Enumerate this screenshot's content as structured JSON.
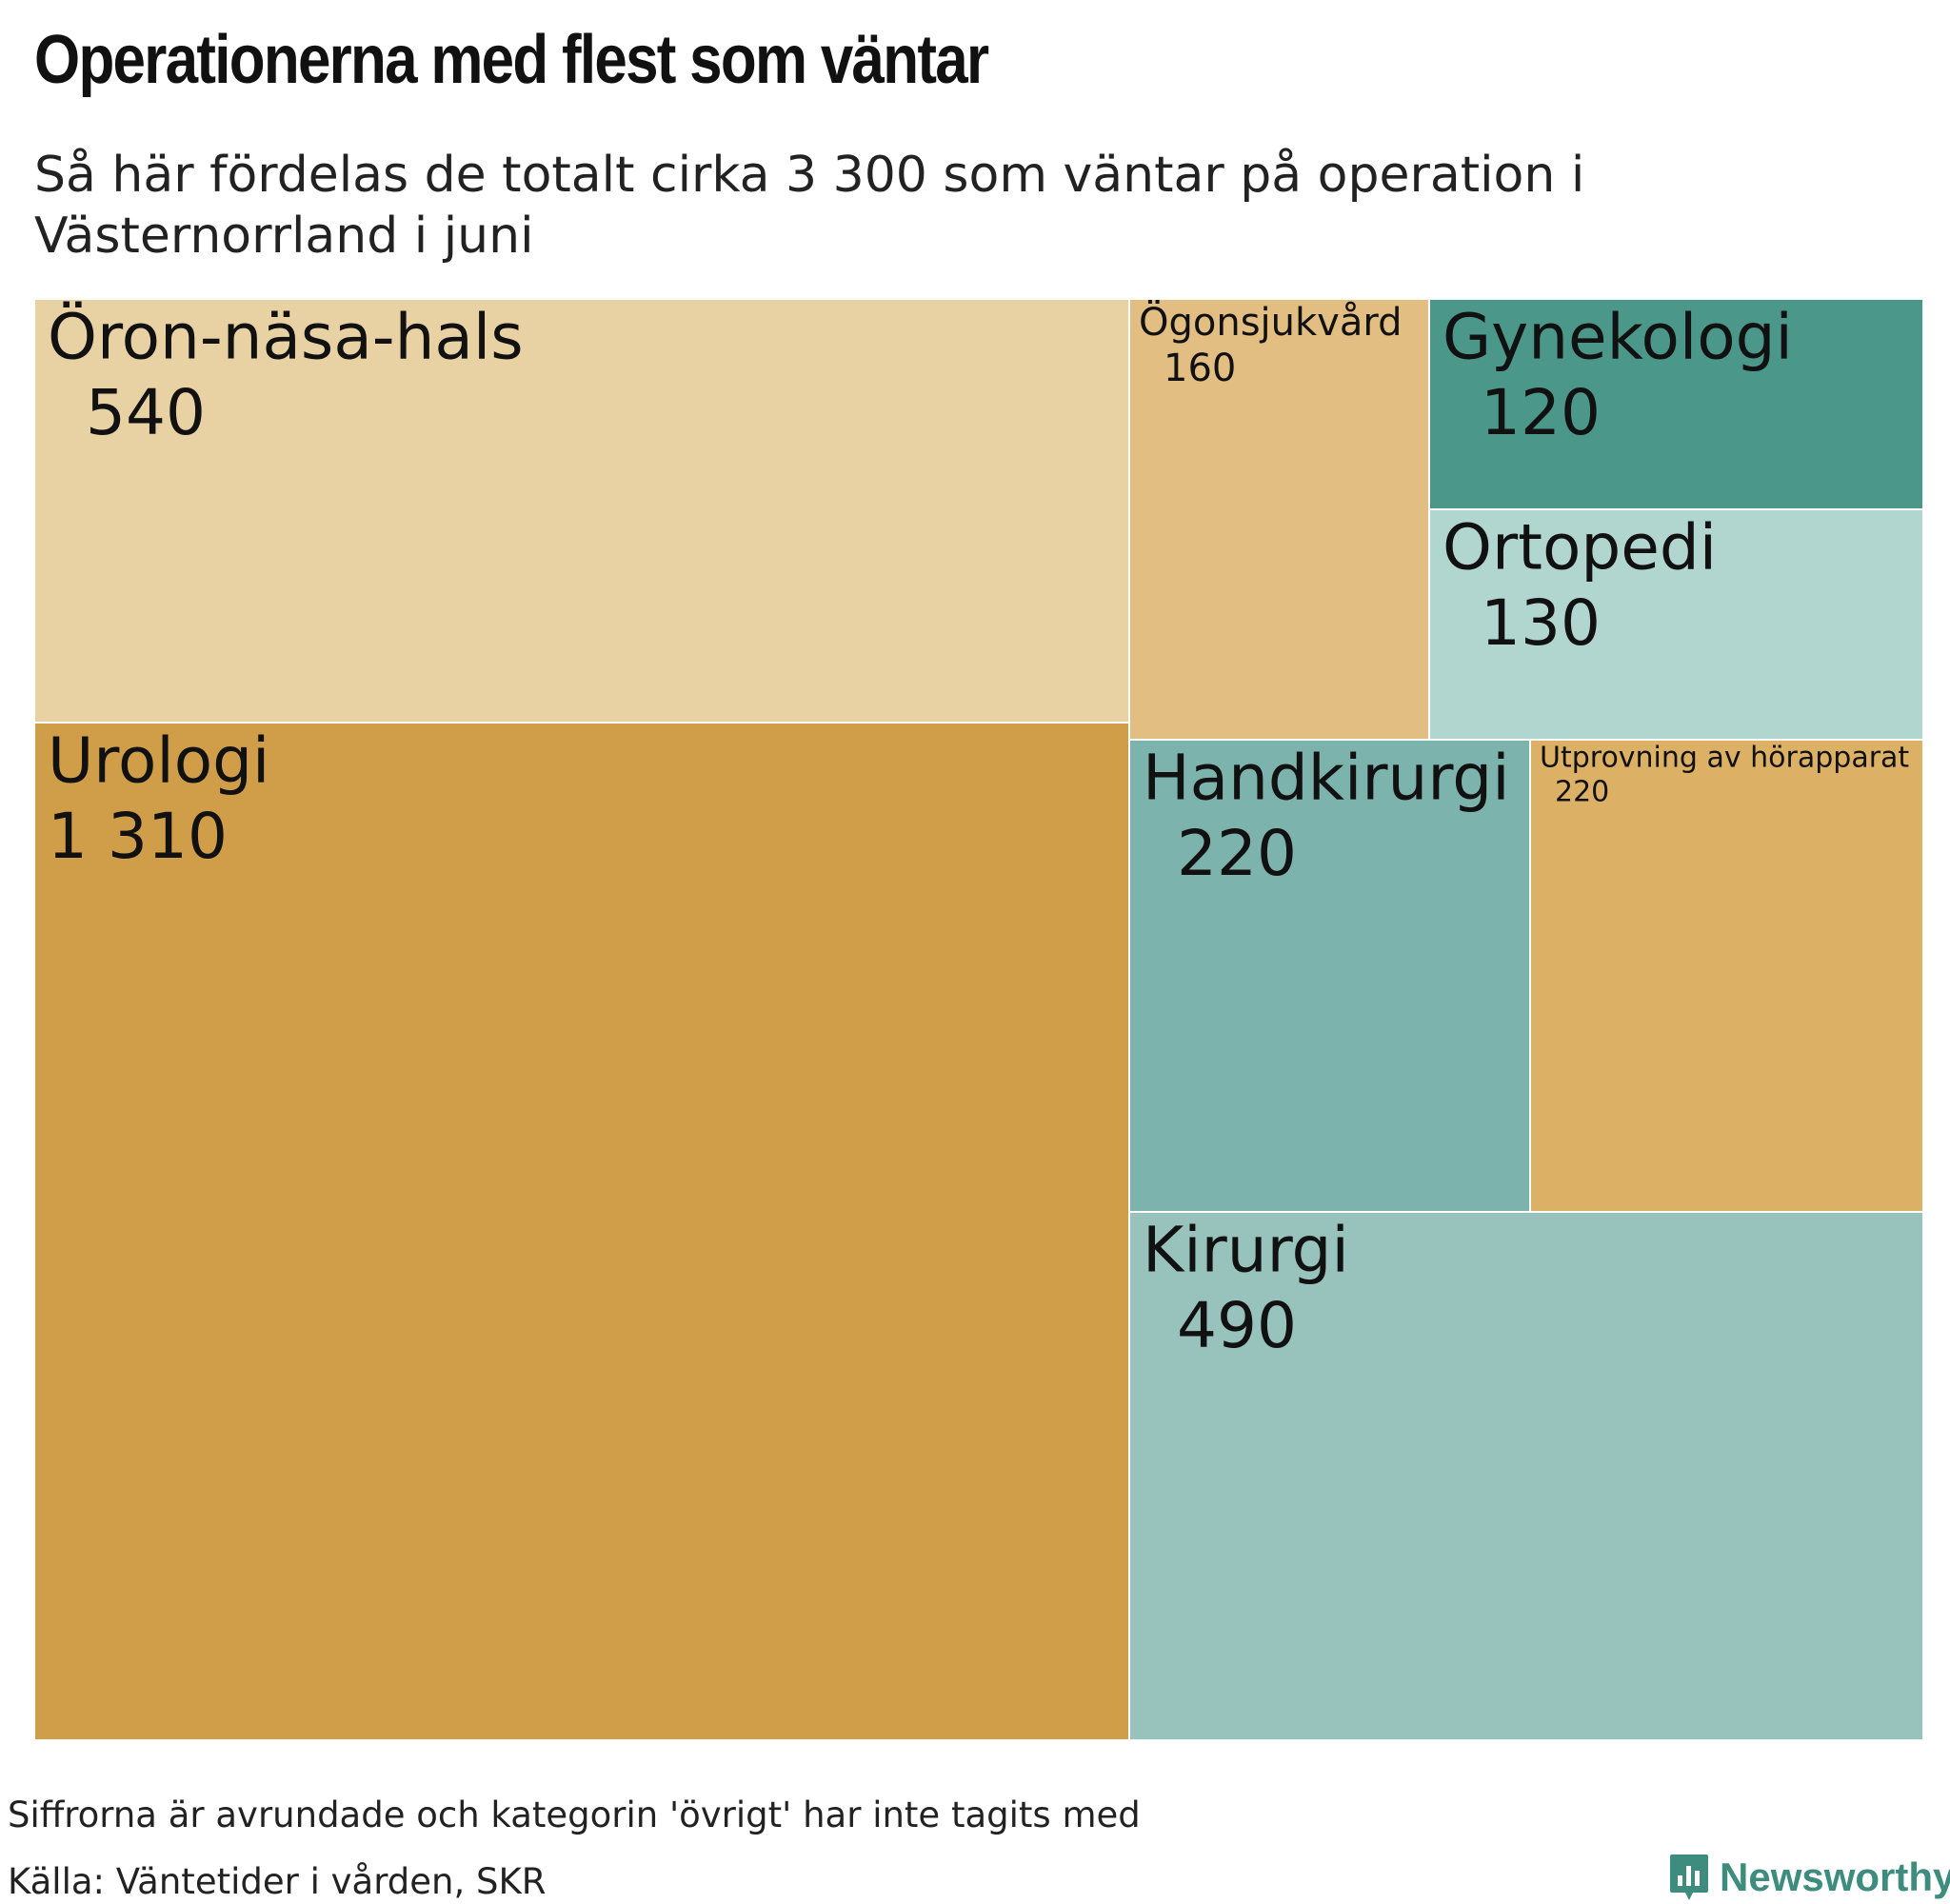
{
  "header": {
    "title": "Operationerna med flest som väntar",
    "subtitle": "Så här fördelas de totalt cirka 3 300 som väntar på operation i Västernorrland i juni"
  },
  "chart_data": {
    "type": "treemap",
    "items": [
      {
        "label": "Urologi",
        "value": 1310,
        "value_label": "1 310",
        "color": "#d09e48"
      },
      {
        "label": "Öron-näsa-hals",
        "value": 540,
        "value_label": "540",
        "color": "#e8d2a4"
      },
      {
        "label": "Kirurgi",
        "value": 490,
        "value_label": "490",
        "color": "#98c3bd"
      },
      {
        "label": "Handkirurgi",
        "value": 220,
        "value_label": "220",
        "color": "#7db3ad"
      },
      {
        "label": "Utprovning av hörapparat",
        "value": 220,
        "value_label": "220",
        "color": "#dcb065"
      },
      {
        "label": "Ögonsjukvård",
        "value": 160,
        "value_label": "160",
        "color": "#e2be82"
      },
      {
        "label": "Ortopedi",
        "value": 130,
        "value_label": "130",
        "color": "#b1d5cf"
      },
      {
        "label": "Gynekologi",
        "value": 120,
        "value_label": "120",
        "color": "#4b978a"
      }
    ]
  },
  "footer": {
    "note": "Siffrorna är avrundade och kategorin 'övrigt' har inte tagits med",
    "source": "Källa: Väntetider i vården, SKR",
    "brand": "Newsworthy",
    "brand_color": "#3d8c7e"
  }
}
